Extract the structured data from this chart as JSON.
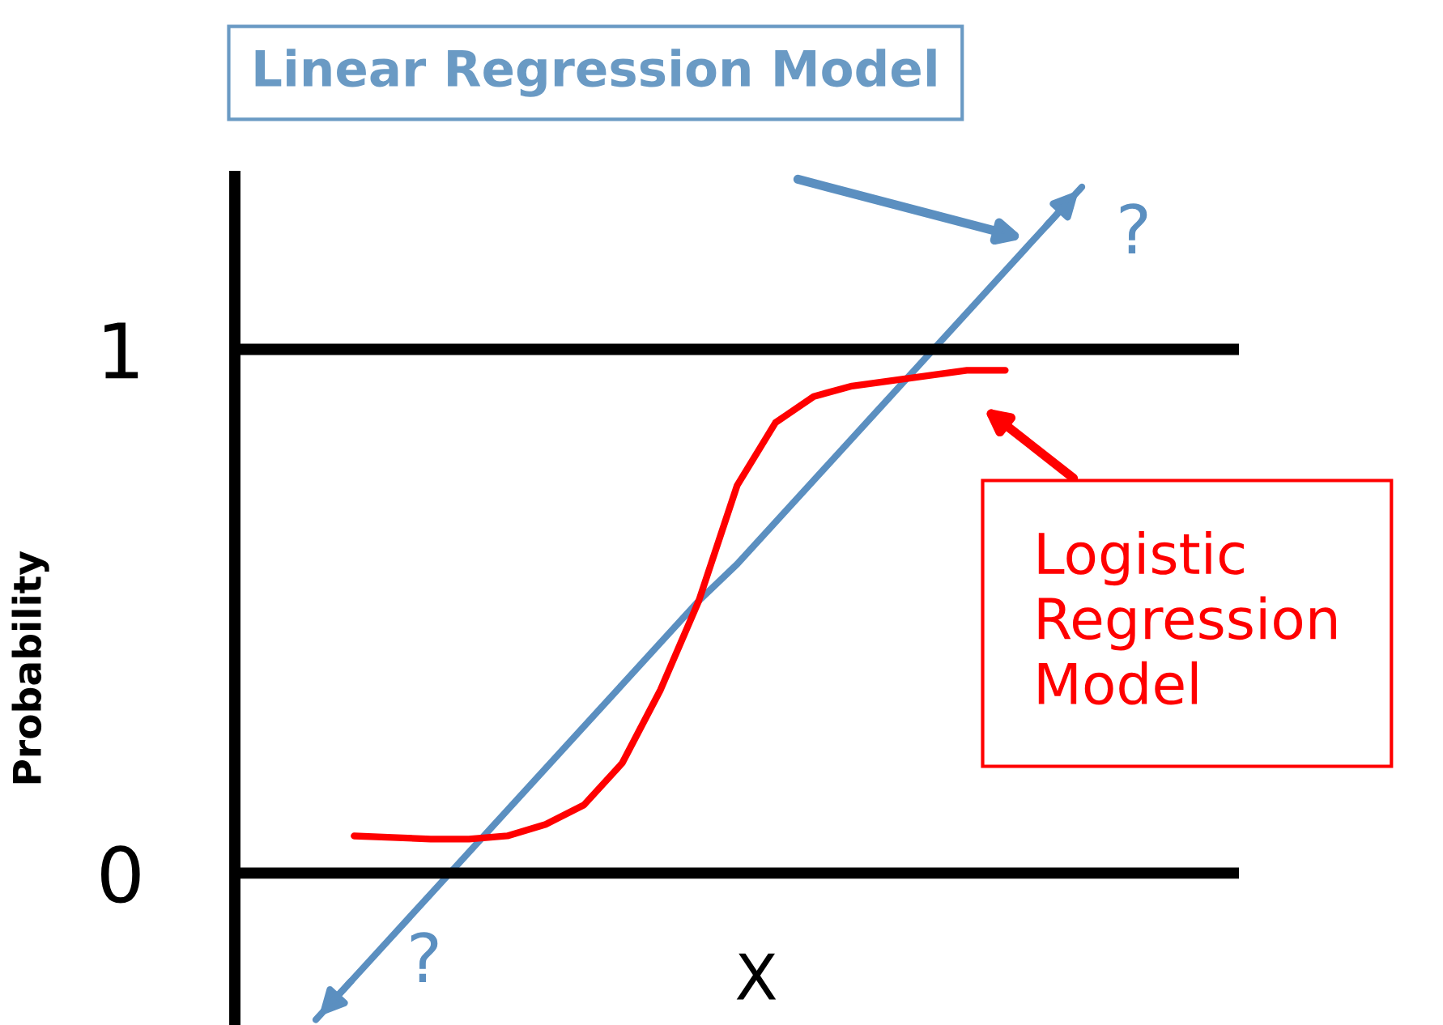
{
  "chart_data": {
    "type": "line",
    "title": "Linear Regression Model",
    "ylabel": "Probability",
    "xlabel": "X",
    "categories": [
      null,
      null,
      null,
      null,
      null,
      null,
      null,
      null,
      null,
      null,
      null,
      null,
      null,
      null,
      null,
      null,
      null,
      null,
      null,
      null,
      null
    ],
    "series": [
      {
        "color": "#5b8fc0",
        "values": [
          -0.28,
          -0.2,
          -0.12,
          -0.04,
          0.04,
          0.12,
          0.2,
          0.28,
          0.36,
          0.44,
          0.52,
          0.59,
          0.67,
          0.75,
          0.83,
          0.91,
          0.99,
          1.07,
          1.15,
          1.23,
          1.31
        ]
      },
      {
        "color": "#ff0000",
        "values": [
          null,
          0.071,
          0.068,
          0.065,
          0.065,
          0.071,
          0.093,
          0.13,
          0.21,
          0.35,
          0.52,
          0.74,
          0.86,
          0.91,
          0.93,
          0.94,
          0.95,
          0.96,
          0.96,
          null,
          null
        ]
      }
    ],
    "ylim": [
      -0.29,
      1.33
    ],
    "yticks": [
      0,
      1
    ],
    "tick_labels": "y",
    "ref_lines": [
      {
        "axis": "y",
        "value": 0,
        "color": "#000000"
      },
      {
        "axis": "y",
        "value": 1,
        "color": "#000000"
      }
    ],
    "annotations": [
      "?",
      "?",
      "Logistic Regression Model"
    ]
  }
}
